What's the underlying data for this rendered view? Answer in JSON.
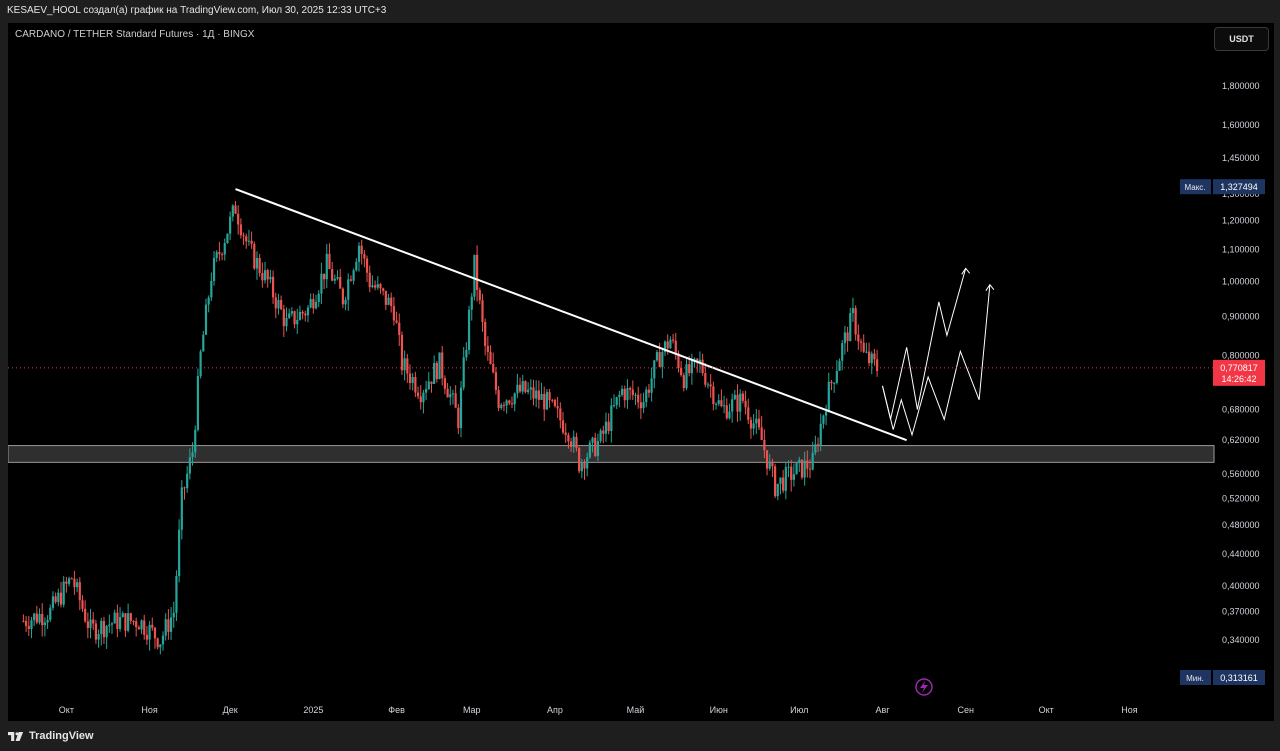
{
  "header": {
    "caption": "KESAEV_HOOL создал(а) график на TradingView.com, Июл 30, 2025 12:33 UTC+3"
  },
  "chart_header": {
    "symbol": "CARDANO / TETHER Standard Futures · 1Д · BINGX",
    "currency_button": "USDT"
  },
  "footer": {
    "brand": "TradingView"
  },
  "colors": {
    "up": "#26a69a",
    "down": "#ef5350",
    "background": "#000000",
    "current_price": "#f23645",
    "marker": "#9c27b0"
  },
  "chart_data": {
    "type": "candlestick",
    "title": "",
    "xlabel": "",
    "ylabel": "",
    "scale": "log",
    "grid": false,
    "x_ticks": [
      "Окт",
      "Ноя",
      "Дек",
      "2025",
      "Фев",
      "Мар",
      "Апр",
      "Май",
      "Июн",
      "Июл",
      "Авг",
      "Сен",
      "Окт",
      "Ноя"
    ],
    "y_ticks": [
      "1,800000",
      "1,600000",
      "1,450000",
      "1,300000",
      "1,200000",
      "1,100000",
      "1,000000",
      "0,900000",
      "0,800000",
      "0,680000",
      "0,620000",
      "0,560000",
      "0,520000",
      "0,480000",
      "0,440000",
      "0,400000",
      "0,370000",
      "0,340000",
      "0,313161"
    ],
    "ylim": [
      0.295,
      2.0
    ],
    "series": [
      {
        "name": "",
        "points": [
          [
            "2024-09-15",
            0.36
          ],
          [
            "2024-09-25",
            0.37
          ],
          [
            "2024-10-03",
            0.41
          ],
          [
            "2024-10-10",
            0.35
          ],
          [
            "2024-10-20",
            0.36
          ],
          [
            "2024-10-28",
            0.36
          ],
          [
            "2024-11-05",
            0.34
          ],
          [
            "2024-11-10",
            0.37
          ],
          [
            "2024-11-13",
            0.52
          ],
          [
            "2024-11-17",
            0.6
          ],
          [
            "2024-11-20",
            0.8
          ],
          [
            "2024-11-24",
            1.02
          ],
          [
            "2024-12-03",
            1.25
          ],
          [
            "2024-12-08",
            1.1
          ],
          [
            "2024-12-15",
            1.0
          ],
          [
            "2024-12-22",
            0.88
          ],
          [
            "2024-12-30",
            0.92
          ],
          [
            "2025-01-06",
            1.05
          ],
          [
            "2025-01-12",
            0.95
          ],
          [
            "2025-01-18",
            1.12
          ],
          [
            "2025-01-22",
            1.0
          ],
          [
            "2025-01-31",
            0.92
          ],
          [
            "2025-02-03",
            0.78
          ],
          [
            "2025-02-10",
            0.72
          ],
          [
            "2025-02-17",
            0.78
          ],
          [
            "2025-02-24",
            0.66
          ],
          [
            "2025-03-02",
            1.05
          ],
          [
            "2025-03-06",
            0.82
          ],
          [
            "2025-03-11",
            0.7
          ],
          [
            "2025-03-20",
            0.72
          ],
          [
            "2025-03-28",
            0.7
          ],
          [
            "2025-04-06",
            0.64
          ],
          [
            "2025-04-10",
            0.58
          ],
          [
            "2025-04-18",
            0.62
          ],
          [
            "2025-04-26",
            0.72
          ],
          [
            "2025-05-04",
            0.7
          ],
          [
            "2025-05-10",
            0.8
          ],
          [
            "2025-05-14",
            0.84
          ],
          [
            "2025-05-19",
            0.75
          ],
          [
            "2025-05-25",
            0.78
          ],
          [
            "2025-06-02",
            0.68
          ],
          [
            "2025-06-10",
            0.7
          ],
          [
            "2025-06-17",
            0.62
          ],
          [
            "2025-06-22",
            0.54
          ],
          [
            "2025-06-28",
            0.56
          ],
          [
            "2025-07-06",
            0.58
          ],
          [
            "2025-07-11",
            0.7
          ],
          [
            "2025-07-17",
            0.82
          ],
          [
            "2025-07-21",
            0.9
          ],
          [
            "2025-07-25",
            0.8
          ],
          [
            "2025-07-30",
            0.770817
          ]
        ]
      }
    ],
    "max_label": "Макс.",
    "max_value": "1,327494",
    "min_label": "Мин.",
    "min_value": "0,313161",
    "current_price": "0,770817",
    "countdown": "14:26:42",
    "annotations": {
      "trendline": [
        [
          "2024-12-03",
          1.32
        ],
        [
          "2025-08-10",
          0.62
        ]
      ],
      "support_zone": [
        0.58,
        0.61
      ],
      "projection_a": [
        [
          "2025-08-01",
          0.73
        ],
        [
          "2025-08-04",
          0.66
        ],
        [
          "2025-08-10",
          0.82
        ],
        [
          "2025-08-14",
          0.68
        ],
        [
          "2025-08-22",
          0.94
        ],
        [
          "2025-08-25",
          0.85
        ],
        [
          "2025-09-01",
          1.04
        ]
      ],
      "projection_b": [
        [
          "2025-08-01",
          0.73
        ],
        [
          "2025-08-05",
          0.64
        ],
        [
          "2025-08-08",
          0.7
        ],
        [
          "2025-08-12",
          0.63
        ],
        [
          "2025-08-18",
          0.75
        ],
        [
          "2025-08-24",
          0.66
        ],
        [
          "2025-08-30",
          0.81
        ],
        [
          "2025-09-06",
          0.7
        ],
        [
          "2025-09-10",
          0.99
        ]
      ]
    }
  }
}
